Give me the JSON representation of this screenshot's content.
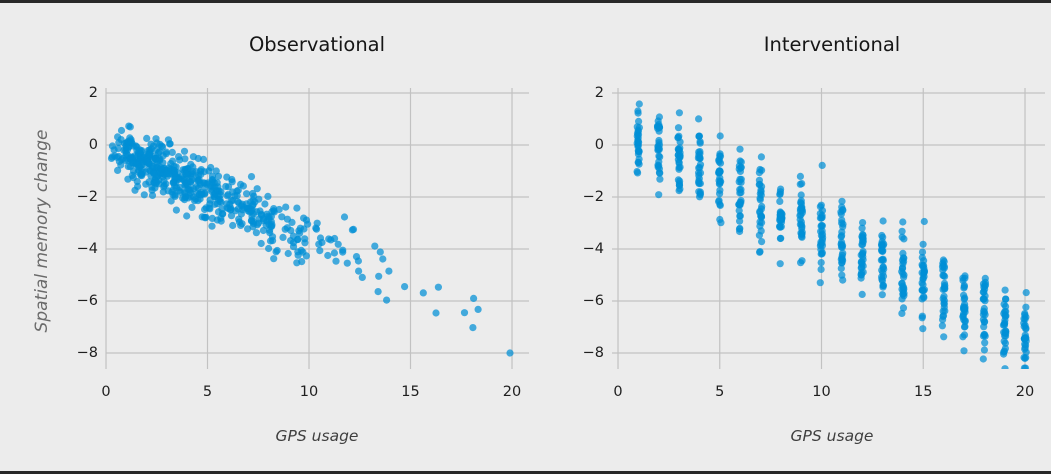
{
  "window": {
    "background": "#ececec",
    "top_edge_color": "#282828",
    "bottom_edge_color": "#282828"
  },
  "style": {
    "grid_color": "#c2c2c2",
    "grid_width": 1.2,
    "marker_color": "#008fd5",
    "marker_alpha": 0.72,
    "marker_radius": 3.6,
    "title_color": "#161616",
    "tick_color": "#1f1f1f",
    "xlabel_color": "#3f3f3f",
    "ylabel_color": "#6a6a6a"
  },
  "chart_data": [
    {
      "id": "observational",
      "type": "scatter",
      "title": "Observational",
      "xlabel": "GPS usage",
      "ylabel": "Spatial memory change",
      "xlim": [
        0,
        20.8
      ],
      "ylim": [
        -8.6,
        2.2
      ],
      "xticks": [
        0,
        5,
        10,
        15,
        20
      ],
      "xtick_labels": [
        "0",
        "5",
        "10",
        "15",
        "20"
      ],
      "yticks": [
        2,
        0,
        -2,
        -4,
        -6,
        -8
      ],
      "ytick_labels": [
        "2",
        "0",
        "−2",
        "−4",
        "−6",
        "−8"
      ],
      "grid": true,
      "legend": "none",
      "n_points": 550,
      "x_distribution": {
        "type": "gamma",
        "shape": 2,
        "scale": 2.5,
        "min": 0.15,
        "max": 18.4
      },
      "relationship": {
        "model": "y = intercept + slope*x + noise",
        "slope": -0.355,
        "intercept": 0.0,
        "noise_sd": 0.52
      },
      "outliers": [
        [
          19.9,
          -8.0
        ]
      ],
      "seed": 20
    },
    {
      "id": "interventional",
      "type": "scatter",
      "title": "Interventional",
      "xlabel": "GPS usage",
      "ylabel": "",
      "xlim": [
        0.05,
        20.95
      ],
      "ylim": [
        -8.6,
        2.2
      ],
      "xticks": [
        0,
        5,
        10,
        15,
        20
      ],
      "xtick_labels": [
        "0",
        "5",
        "10",
        "15",
        "20"
      ],
      "yticks": [
        2,
        0,
        -2,
        -4,
        -6,
        -8
      ],
      "ytick_labels": [
        "2",
        "0",
        "−2",
        "−4",
        "−6",
        "−8"
      ],
      "grid": true,
      "legend": "none",
      "x_values": [
        1,
        2,
        3,
        4,
        5,
        6,
        7,
        8,
        9,
        10,
        11,
        12,
        13,
        14,
        15,
        16,
        17,
        18,
        19,
        20
      ],
      "points_per_x": 30,
      "x_jitter": 0.06,
      "relationship": {
        "model": "y = intercept + slope*x + noise",
        "slope": -0.405,
        "intercept": 0.75,
        "noise_sd": 0.75
      },
      "y_clip_min": -8.75,
      "seed": 77
    }
  ]
}
